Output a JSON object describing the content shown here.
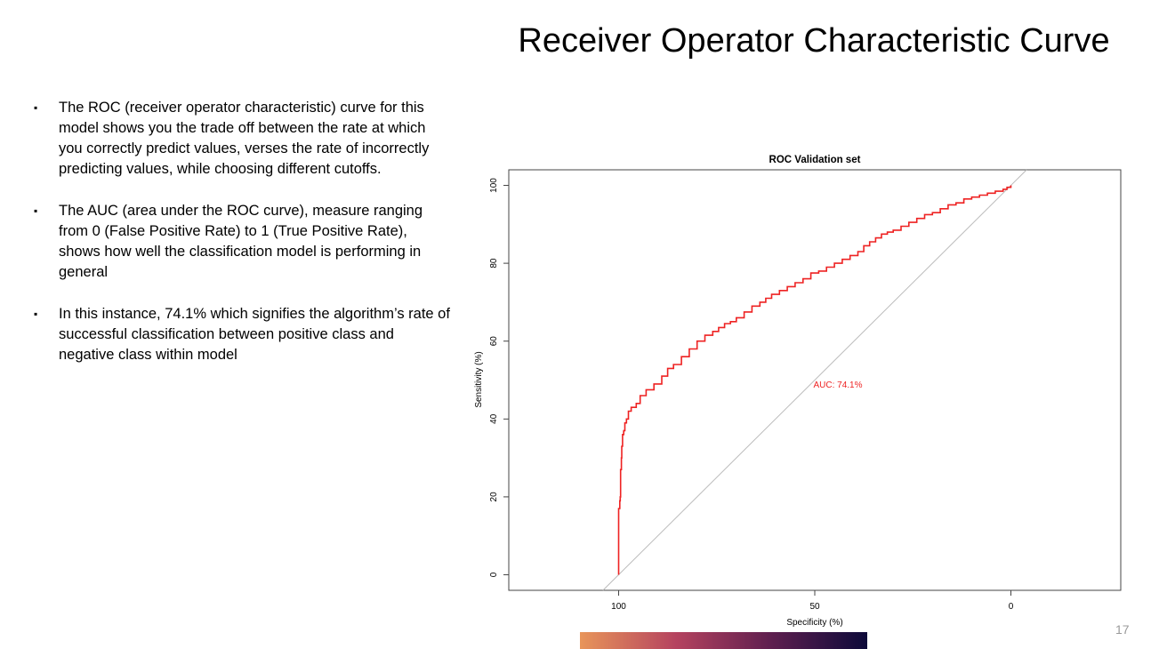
{
  "slide": {
    "title": "Receiver Operator Characteristic Curve",
    "page_number": "17",
    "bullets": [
      "The ROC (receiver operator characteristic) curve for this model shows you the trade off between the rate at which you correctly predict values, verses the rate of incorrectly predicting values, while choosing different cutoffs.",
      "The AUC (area under the ROC curve), measure ranging from 0 (False Positive Rate) to 1 (True Positive Rate), shows how well the classification model is performing in general",
      "In this instance, 74.1% which signifies the algorithm’s rate of successful classification between positive class and negative class within model"
    ],
    "bullet_marker": "▪",
    "gradient_colors": [
      "#e8955a",
      "#b5435f",
      "#5e1f4f",
      "#0d0a3a"
    ]
  },
  "chart_data": {
    "type": "line",
    "title": "ROC Validation set",
    "xlabel": "Specificity (%)",
    "ylabel": "Sensitivity (%)",
    "x_reversed": true,
    "xlim": [
      128,
      -28
    ],
    "ylim": [
      -4,
      104
    ],
    "x_ticks": [
      100,
      50,
      0
    ],
    "y_ticks": [
      0,
      20,
      40,
      60,
      80,
      100
    ],
    "grid": false,
    "annotation": "AUC: 74.1%",
    "curve_color": "#ee2222",
    "diagonal_color": "#bbbbbb",
    "series": [
      {
        "specificity": [
          100,
          100,
          99.7,
          99.6,
          99.5,
          99.3,
          99.2,
          99.0,
          98.7,
          98.4,
          98.0,
          97.5,
          96.8,
          95.5,
          94.5,
          93.0,
          91.0,
          89.0,
          87.5,
          86.0,
          84.0,
          82.0,
          80.0,
          78.0,
          76.0,
          74.5,
          73.0,
          71.5,
          70.0,
          68.0,
          66.0,
          64.0,
          62.5,
          61.0,
          59.0,
          57.0,
          55.0,
          53.0,
          51.0,
          49.0,
          47.0,
          45.0,
          43.0,
          41.0,
          39.0,
          37.5,
          36.0,
          34.5,
          33.0,
          31.5,
          30.0,
          28.0,
          26.0,
          24.0,
          22.0,
          20.0,
          18.0,
          16.0,
          14.0,
          12.0,
          10.0,
          8.0,
          6.0,
          4.0,
          2.0,
          1.0,
          0
        ],
        "sensitivity": [
          0,
          17,
          19,
          20,
          27,
          30,
          33,
          36,
          37,
          39,
          40,
          42,
          43,
          44,
          46,
          47.5,
          49,
          51,
          53,
          54,
          56,
          58,
          60,
          61.5,
          62.5,
          63.5,
          64.5,
          65,
          66,
          67.5,
          69,
          70,
          71,
          72,
          73,
          74,
          75,
          76,
          77.5,
          78,
          79,
          80,
          81,
          82,
          83,
          84.5,
          85.5,
          86.5,
          87.5,
          88,
          88.5,
          89.5,
          90.5,
          91.5,
          92.5,
          93,
          94,
          95,
          95.5,
          96.5,
          97,
          97.5,
          98,
          98.5,
          99,
          99.5,
          100
        ]
      }
    ]
  }
}
